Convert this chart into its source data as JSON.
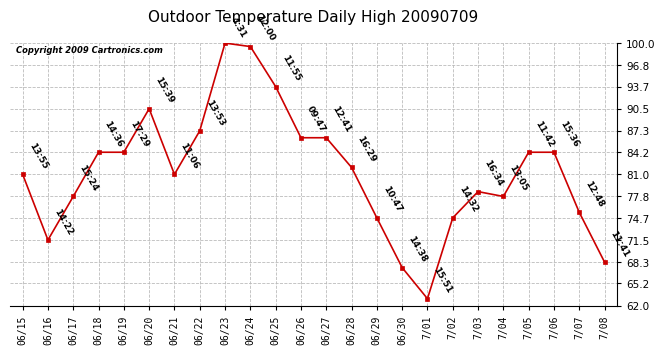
{
  "title": "Outdoor Temperature Daily High 20090709",
  "copyright": "Copyright 2009 Cartronics.com",
  "x_labels": [
    "06/15",
    "06/16",
    "06/17",
    "06/18",
    "06/19",
    "06/20",
    "06/21",
    "06/22",
    "06/23",
    "06/24",
    "06/25",
    "06/26",
    "06/27",
    "06/28",
    "06/29",
    "06/30",
    "7/01",
    "7/02",
    "7/03",
    "7/04",
    "7/05",
    "7/06",
    "7/07",
    "7/08"
  ],
  "y_values": [
    81.0,
    71.5,
    77.8,
    84.2,
    84.2,
    90.5,
    81.0,
    87.3,
    100.0,
    99.5,
    93.7,
    86.3,
    86.3,
    82.0,
    74.7,
    67.5,
    63.0,
    74.7,
    78.5,
    77.8,
    84.2,
    84.2,
    75.5,
    68.3
  ],
  "time_labels": [
    "13:55",
    "14:22",
    "15:24",
    "14:36",
    "17:29",
    "15:39",
    "11:06",
    "13:53",
    "4:31",
    "12:00",
    "11:55",
    "09:47",
    "12:41",
    "16:29",
    "10:47",
    "14:38",
    "15:51",
    "14:32",
    "16:34",
    "13:05",
    "11:42",
    "15:36",
    "12:48",
    "11:41"
  ],
  "ylim": [
    62.0,
    100.0
  ],
  "yticks": [
    62.0,
    65.2,
    68.3,
    71.5,
    74.7,
    77.8,
    81.0,
    84.2,
    87.3,
    90.5,
    93.7,
    96.8,
    100.0
  ],
  "line_color": "#cc0000",
  "marker_color": "#cc0000",
  "bg_color": "#ffffff",
  "grid_color": "#bbbbbb",
  "title_fontsize": 11,
  "copyright_fontsize": 6,
  "time_label_fontsize": 6.5
}
